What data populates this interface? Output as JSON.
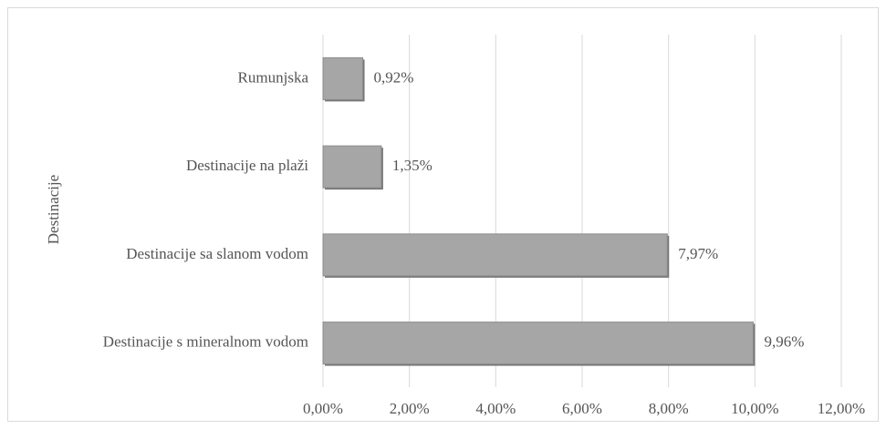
{
  "chart_data": {
    "type": "bar",
    "orientation": "horizontal",
    "y_label": "Destinacije",
    "categories": [
      "Rumunjska",
      "Destinacije na plaži",
      "Destinacije sa slanom vodom",
      "Destinacije s mineralnom vodom"
    ],
    "values": [
      0.92,
      1.35,
      7.97,
      9.96
    ],
    "value_labels": [
      "0,92%",
      "1,35%",
      "7,97%",
      "9,96%"
    ],
    "color": "#a6a6a6",
    "xlim": [
      0,
      12
    ],
    "xticks": [
      {
        "value": 0,
        "label": "0,00%"
      },
      {
        "value": 2,
        "label": "2,00%"
      },
      {
        "value": 4,
        "label": "4,00%"
      },
      {
        "value": 6,
        "label": "6,00%"
      },
      {
        "value": 8,
        "label": "8,00%"
      },
      {
        "value": 10,
        "label": "10,00%"
      },
      {
        "value": 12,
        "label": "12,00%"
      }
    ],
    "grid": true
  }
}
